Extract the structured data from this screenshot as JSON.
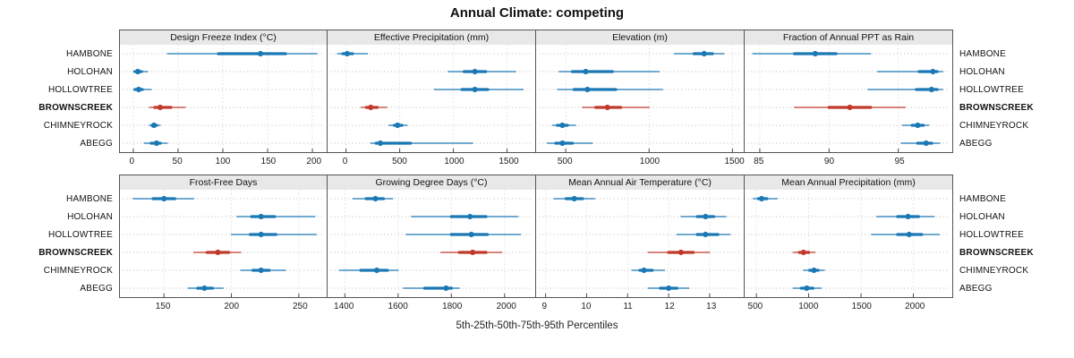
{
  "title": "Annual Climate: competing",
  "caption": "5th-25th-50th-75th-95th Percentiles",
  "colors": {
    "normal": "#1a78b4",
    "highlight": "#c0392b",
    "grid": "#b8b8b8",
    "vgrid": "#d2d2d2"
  },
  "sites": [
    "HAMBONE",
    "HOLOHAN",
    "HOLLOWTREE",
    "BROWNSCREEK",
    "CHIMNEYROCK",
    "ABEGG"
  ],
  "highlight_site": "BROWNSCREEK",
  "chart_data": {
    "type": "dotplot-interval",
    "percentiles": [
      5,
      25,
      50,
      75,
      95
    ],
    "panels": [
      {
        "title": "Design Freeze Index (°C)",
        "row": 0,
        "col": 0,
        "xlim": [
          -14,
          215
        ],
        "ticks": [
          0,
          50,
          100,
          150,
          200
        ],
        "values": {
          "HAMBONE": [
            38,
            95,
            142,
            170,
            205
          ],
          "HOLOHAN": [
            0,
            2,
            5,
            9,
            16
          ],
          "HOLLOWTREE": [
            0,
            2,
            6,
            10,
            20
          ],
          "BROWNSCREEK": [
            18,
            24,
            30,
            42,
            58
          ],
          "CHIMNEYROCK": [
            18,
            21,
            23,
            26,
            30
          ],
          "ABEGG": [
            12,
            20,
            26,
            30,
            38
          ]
        }
      },
      {
        "title": "Effective Precipitation (mm)",
        "row": 0,
        "col": 1,
        "xlim": [
          -160,
          1750
        ],
        "ticks": [
          0,
          500,
          1000,
          1500
        ],
        "values": {
          "HAMBONE": [
            -80,
            -30,
            10,
            60,
            200
          ],
          "HOLOHAN": [
            950,
            1100,
            1200,
            1300,
            1580
          ],
          "HOLLOWTREE": [
            820,
            1080,
            1200,
            1320,
            1650
          ],
          "BROWNSCREEK": [
            140,
            190,
            230,
            290,
            380
          ],
          "CHIMNEYROCK": [
            400,
            450,
            480,
            520,
            570
          ],
          "ABEGG": [
            230,
            280,
            320,
            600,
            1180
          ]
        }
      },
      {
        "title": "Elevation (m)",
        "row": 0,
        "col": 2,
        "xlim": [
          330,
          1560
        ],
        "ticks": [
          500,
          1000,
          1500
        ],
        "values": {
          "HAMBONE": [
            1150,
            1270,
            1330,
            1380,
            1450
          ],
          "HOLOHAN": [
            460,
            540,
            620,
            780,
            1060
          ],
          "HOLLOWTREE": [
            450,
            550,
            630,
            800,
            1080
          ],
          "BROWNSCREEK": [
            600,
            680,
            750,
            830,
            1000
          ],
          "CHIMNEYROCK": [
            420,
            450,
            480,
            510,
            560
          ],
          "ABEGG": [
            390,
            440,
            480,
            540,
            660
          ]
        }
      },
      {
        "title": "Fraction of Annual PPT as Rain",
        "row": 0,
        "col": 3,
        "xlim": [
          84.0,
          98.8
        ],
        "ticks": [
          85,
          90,
          95
        ],
        "values": {
          "HAMBONE": [
            84.5,
            87.5,
            89.0,
            90.5,
            93.0
          ],
          "HOLOHAN": [
            93.5,
            96.5,
            97.5,
            97.8,
            98.2
          ],
          "HOLLOWTREE": [
            92.8,
            96.3,
            97.4,
            97.8,
            98.2
          ],
          "BROWNSCREEK": [
            87.5,
            90.0,
            91.5,
            93.0,
            95.5
          ],
          "CHIMNEYROCK": [
            95.3,
            96.0,
            96.4,
            96.8,
            97.2
          ],
          "ABEGG": [
            95.2,
            96.4,
            97.0,
            97.4,
            98.0
          ]
        }
      },
      {
        "title": "Frost-Free Days",
        "row": 1,
        "col": 0,
        "xlim": [
          118,
          270
        ],
        "ticks": [
          150,
          200,
          250
        ],
        "values": {
          "HAMBONE": [
            127,
            142,
            150,
            158,
            172
          ],
          "HOLOHAN": [
            204,
            215,
            222,
            232,
            262
          ],
          "HOLLOWTREE": [
            200,
            214,
            222,
            233,
            263
          ],
          "BROWNSCREEK": [
            172,
            182,
            190,
            198,
            207
          ],
          "CHIMNEYROCK": [
            207,
            216,
            222,
            228,
            240
          ],
          "ABEGG": [
            168,
            175,
            180,
            186,
            194
          ]
        }
      },
      {
        "title": "Growing Degree Days (°C)",
        "row": 1,
        "col": 1,
        "xlim": [
          1340,
          2110
        ],
        "ticks": [
          1400,
          1600,
          1800,
          2000
        ],
        "values": {
          "HAMBONE": [
            1430,
            1480,
            1515,
            1545,
            1580
          ],
          "HOLOHAN": [
            1650,
            1800,
            1870,
            1930,
            2050
          ],
          "HOLLOWTREE": [
            1630,
            1800,
            1875,
            1935,
            2060
          ],
          "BROWNSCREEK": [
            1760,
            1830,
            1880,
            1930,
            1990
          ],
          "CHIMNEYROCK": [
            1380,
            1460,
            1520,
            1560,
            1600
          ],
          "ABEGG": [
            1620,
            1700,
            1780,
            1800,
            1830
          ]
        }
      },
      {
        "title": "Mean Annual Air Temperature (°C)",
        "row": 1,
        "col": 2,
        "xlim": [
          8.8,
          13.8
        ],
        "ticks": [
          9,
          10,
          11,
          12,
          13
        ],
        "values": {
          "HAMBONE": [
            9.2,
            9.5,
            9.7,
            9.9,
            10.2
          ],
          "HOLOHAN": [
            12.3,
            12.7,
            12.9,
            13.1,
            13.4
          ],
          "HOLLOWTREE": [
            12.2,
            12.7,
            12.9,
            13.2,
            13.5
          ],
          "BROWNSCREEK": [
            11.5,
            12.0,
            12.3,
            12.6,
            13.0
          ],
          "CHIMNEYROCK": [
            11.1,
            11.3,
            11.4,
            11.6,
            11.9
          ],
          "ABEGG": [
            11.5,
            11.8,
            12.0,
            12.2,
            12.5
          ]
        }
      },
      {
        "title": "Mean Annual Precipitation (mm)",
        "row": 1,
        "col": 3,
        "xlim": [
          400,
          2360
        ],
        "ticks": [
          500,
          1000,
          1500,
          2000
        ],
        "values": {
          "HAMBONE": [
            470,
            520,
            550,
            600,
            700
          ],
          "HOLOHAN": [
            1650,
            1850,
            1950,
            2050,
            2200
          ],
          "HOLLOWTREE": [
            1600,
            1850,
            1960,
            2080,
            2250
          ],
          "BROWNSCREEK": [
            850,
            910,
            950,
            1000,
            1060
          ],
          "CHIMNEYROCK": [
            950,
            1010,
            1050,
            1090,
            1150
          ],
          "ABEGG": [
            850,
            930,
            980,
            1040,
            1120
          ]
        }
      }
    ]
  }
}
